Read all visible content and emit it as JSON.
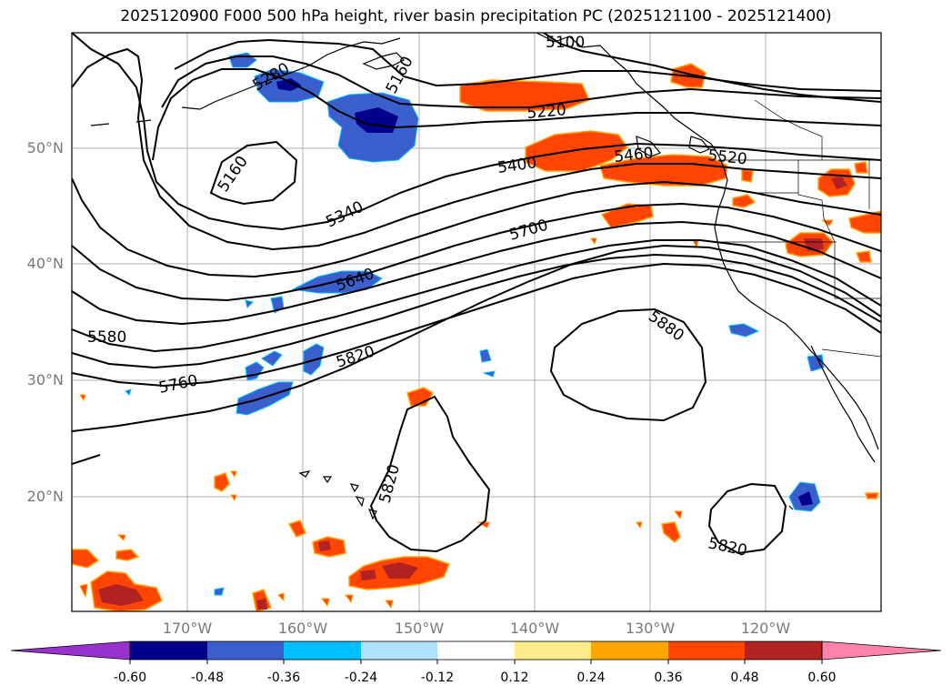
{
  "title": "2025120900 F000 500 hPa height, river basin precipitation PC (2025121100 - 2025121400)",
  "lat_labels": [
    "50°N",
    "40°N",
    "30°N",
    "20°N"
  ],
  "lon_labels": [
    "170°W",
    "160°W",
    "150°W",
    "140°W",
    "130°W",
    "120°W"
  ],
  "contour_labels": [
    "5100",
    "5160",
    "5160",
    "5220",
    "5280",
    "5340",
    "5400",
    "5460",
    "5520",
    "5580",
    "5640",
    "5700",
    "5760",
    "5820",
    "5820",
    "5820",
    "5880"
  ],
  "colorbar": {
    "ticks": [
      "-0.60",
      "-0.48",
      "-0.36",
      "-0.24",
      "-0.12",
      "0.12",
      "0.24",
      "0.36",
      "0.48",
      "0.60"
    ],
    "colors": [
      "#9932cc",
      "#00008b",
      "#3a5fcd",
      "#00bfff",
      "#b0e2ff",
      "#ffffff",
      "#ffec8b",
      "#ffa500",
      "#ff4500",
      "#b22222",
      "#ff82ab"
    ]
  }
}
